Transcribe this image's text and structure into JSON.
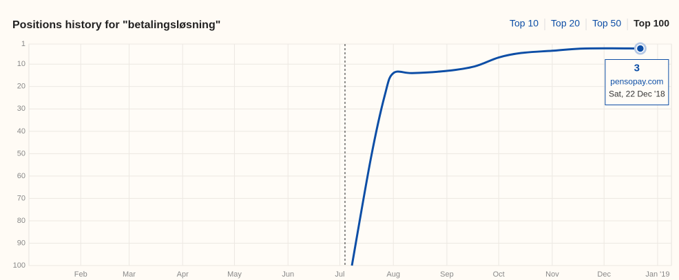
{
  "tabs": [
    "Top 10",
    "Top 20",
    "Top 50",
    "Top 100"
  ],
  "active_tab": 3,
  "chart_data": {
    "type": "line",
    "title": "Positions history for \"betalingsløsning\"",
    "xlim": [
      "2018-01-02",
      "2019-01-09"
    ],
    "xticks": [
      {
        "value": "2018-02-01",
        "label": "Feb"
      },
      {
        "value": "2018-03-01",
        "label": "Mar"
      },
      {
        "value": "2018-04-01",
        "label": "Apr"
      },
      {
        "value": "2018-05-01",
        "label": "May"
      },
      {
        "value": "2018-06-01",
        "label": "Jun"
      },
      {
        "value": "2018-07-01",
        "label": "Jul"
      },
      {
        "value": "2018-08-01",
        "label": "Aug"
      },
      {
        "value": "2018-09-01",
        "label": "Sep"
      },
      {
        "value": "2018-10-01",
        "label": "Oct"
      },
      {
        "value": "2018-11-01",
        "label": "Nov"
      },
      {
        "value": "2018-12-01",
        "label": "Dec"
      },
      {
        "value": "2019-01-01",
        "label": "Jan '19"
      }
    ],
    "ylim": [
      1,
      100
    ],
    "y_inverted": true,
    "yticks": [
      1,
      10,
      20,
      30,
      40,
      50,
      60,
      70,
      80,
      90,
      100
    ],
    "grid": true,
    "vline": "2018-07-04",
    "x": [
      "2018-07-08",
      "2018-07-19",
      "2018-07-27",
      "2018-08-01",
      "2018-08-12",
      "2018-09-01",
      "2018-09-17",
      "2018-10-01",
      "2018-10-14",
      "2018-11-01",
      "2018-11-20",
      "2018-12-22"
    ],
    "series": [
      {
        "name": "pensopay.com",
        "color": "#0d4ea6",
        "values": [
          100,
          52,
          24,
          14,
          14,
          13,
          11,
          7,
          5,
          4,
          3,
          3
        ]
      }
    ],
    "tooltip_date": "Sat, 22 Dec '18"
  }
}
